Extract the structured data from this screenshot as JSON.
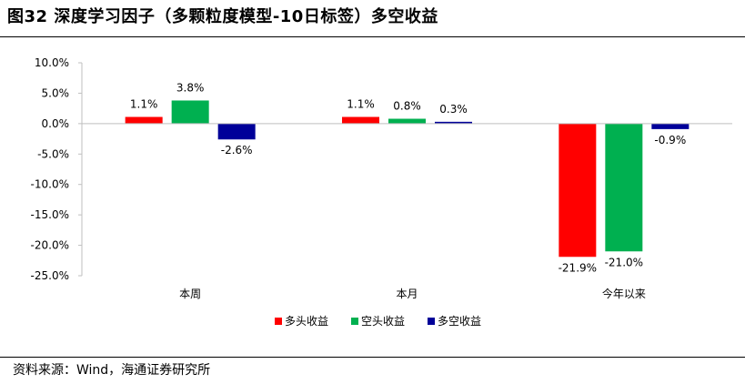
{
  "header": {
    "title": "图32 深度学习因子（多颗粒度模型-10日标签）多空收益"
  },
  "footer": {
    "source": "资料来源：Wind，海通证券研究所"
  },
  "chart_data": {
    "type": "bar",
    "title": "图32 深度学习因子（多颗粒度模型-10日标签）多空收益",
    "categories": [
      "本周",
      "本月",
      "今年以来"
    ],
    "series": [
      {
        "name": "多头收益",
        "color": "#ff0000",
        "values": [
          1.1,
          1.1,
          -21.9
        ],
        "labels": [
          "1.1%",
          "1.1%",
          "-21.9%"
        ]
      },
      {
        "name": "空头收益",
        "color": "#00b050",
        "values": [
          3.8,
          0.8,
          -21.0
        ],
        "labels": [
          "3.8%",
          "0.8%",
          "-21.0%"
        ]
      },
      {
        "name": "多空收益",
        "color": "#000099",
        "values": [
          -2.6,
          0.3,
          -0.9
        ],
        "labels": [
          "-2.6%",
          "0.3%",
          "-0.9%"
        ]
      }
    ],
    "ylim": [
      -25,
      10
    ],
    "yticks": [
      10,
      5,
      0,
      -5,
      -10,
      -15,
      -20,
      -25
    ],
    "ytick_labels": [
      "10.0%",
      "5.0%",
      "0.0%",
      "-5.0%",
      "-10.0%",
      "-15.0%",
      "-20.0%",
      "-25.0%"
    ],
    "xlabel": "",
    "ylabel": "",
    "grid": false,
    "legend": "bottom"
  }
}
